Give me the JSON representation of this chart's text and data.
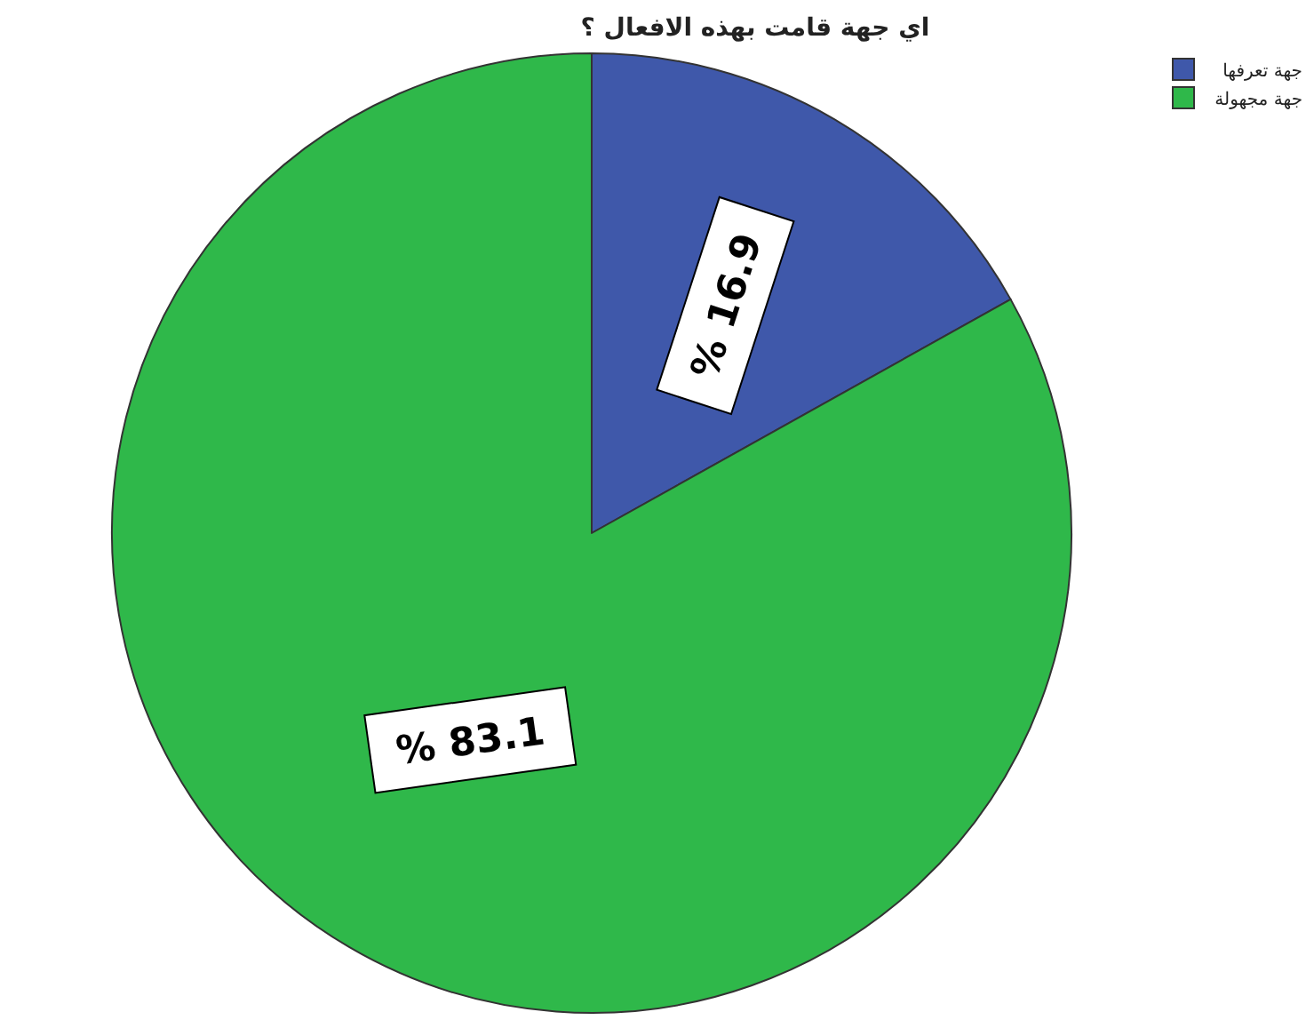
{
  "chart_data": {
    "type": "pie",
    "title": "اي جهة قامت بهذه الافعال ؟",
    "categories": [
      "جهة تعرفها",
      "جهة مجهولة"
    ],
    "values": [
      16.9,
      83.1
    ],
    "colors": [
      "#3f58aa",
      "#2fb84a"
    ],
    "value_labels": [
      "% 16.9",
      "% 83.1"
    ],
    "legend": "top right"
  }
}
